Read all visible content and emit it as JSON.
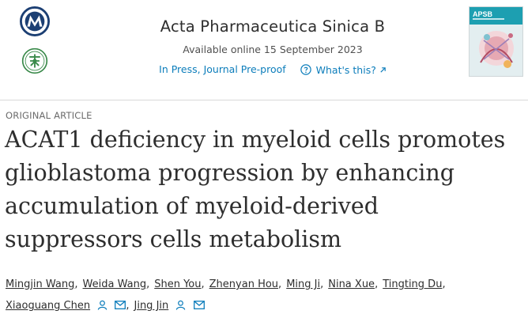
{
  "header": {
    "journal_name": "Acta Pharmaceutica Sinica B",
    "available_online": "Available online 15 September 2023",
    "status_link": "In Press, Journal Pre-proof",
    "whats_this": "What's this?",
    "cover_code": "APSB"
  },
  "article": {
    "type": "ORIGINAL ARTICLE",
    "title_lines": [
      "ACAT1 deficiency in myeloid cells promotes",
      "glioblastoma progression by enhancing",
      "accumulation of myeloid-derived",
      "suppressors cells metabolism"
    ]
  },
  "authors": {
    "line1": [
      "Mingjin Wang",
      "Weida Wang",
      "Shen You",
      "Zhenyan Hou",
      "Ming Ji",
      "Nina Xue",
      "Tingting Du"
    ],
    "line2": [
      "Xiaoguang Chen",
      "Jing Jin"
    ]
  },
  "colors": {
    "link_blue": "#0c7dbb",
    "text": "#2e2e2e",
    "cover_teal": "#1d9fb1",
    "logo_green": "#3a8a4a",
    "logo_blue": "#1c3f73"
  },
  "icons": {
    "logo_top": "society-logo-icon",
    "logo_bottom": "institute-seal-icon",
    "help": "question-circle-icon",
    "external": "external-link-icon",
    "author": "person-icon",
    "email": "envelope-icon"
  }
}
